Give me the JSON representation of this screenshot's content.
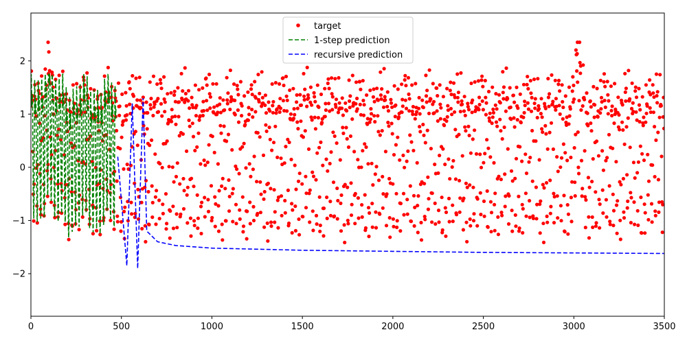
{
  "chart_data": {
    "type": "line",
    "title": "",
    "xlabel": "",
    "ylabel": "",
    "xlim": [
      0,
      3500
    ],
    "ylim": [
      -2.8,
      2.9
    ],
    "grid": false,
    "legend_position": "upper center",
    "x_ticks": [
      0,
      500,
      1000,
      1500,
      2000,
      2500,
      3000,
      3500
    ],
    "x_tick_labels": [
      "0",
      "500",
      "1000",
      "1500",
      "2000",
      "2500",
      "3000",
      "3500"
    ],
    "y_ticks": [
      -2,
      -1,
      0,
      1,
      2
    ],
    "y_tick_labels": [
      "−2",
      "−1",
      "0",
      "1",
      "2"
    ],
    "series": [
      {
        "name": "target",
        "style": "markers",
        "marker": "circle",
        "color": "#ff0000",
        "x_range": [
          0,
          3500
        ],
        "value_range": [
          -1.95,
          2.35
        ],
        "peaks": [
          {
            "x": 95,
            "y": 2.35
          },
          {
            "x": 3020,
            "y": 2.35
          }
        ],
        "description": "dense oscillating samples between about -1.95 and 1.5 across the full range"
      },
      {
        "name": "1-step prediction",
        "style": "dashed",
        "color": "#008000",
        "x_range": [
          0,
          470
        ],
        "value_range": [
          -1.9,
          1.75
        ],
        "description": "tracks target closely over first ~470 steps"
      },
      {
        "name": "recursive prediction",
        "style": "dashed",
        "color": "#0000ff",
        "x_range": [
          480,
          3500
        ],
        "points": [
          {
            "x": 480,
            "y": 0.2
          },
          {
            "x": 530,
            "y": -1.85
          },
          {
            "x": 560,
            "y": 1.2
          },
          {
            "x": 590,
            "y": -1.9
          },
          {
            "x": 620,
            "y": 1.3
          },
          {
            "x": 640,
            "y": -1.2
          },
          {
            "x": 700,
            "y": -1.4
          },
          {
            "x": 800,
            "y": -1.47
          },
          {
            "x": 1000,
            "y": -1.52
          },
          {
            "x": 1500,
            "y": -1.56
          },
          {
            "x": 2000,
            "y": -1.58
          },
          {
            "x": 2500,
            "y": -1.6
          },
          {
            "x": 3000,
            "y": -1.61
          },
          {
            "x": 3500,
            "y": -1.62
          }
        ]
      }
    ]
  }
}
